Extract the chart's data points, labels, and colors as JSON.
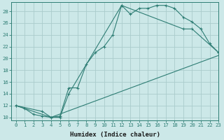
{
  "xlabel": "Humidex (Indice chaleur)",
  "bg_color": "#cce8e8",
  "line_color": "#2e7d74",
  "grid_color": "#aacccc",
  "line1_x": [
    0,
    1,
    2,
    3,
    4,
    5,
    6,
    7,
    8,
    9,
    10,
    11,
    12,
    13,
    14,
    15,
    16,
    17,
    18,
    19,
    20,
    21,
    22,
    23
  ],
  "line1_y": [
    12,
    11.5,
    10.5,
    10.2,
    10,
    10.2,
    15,
    15,
    19,
    21,
    22,
    24,
    29,
    27.5,
    28.5,
    28.5,
    29,
    29,
    28.5,
    27,
    26.2,
    25,
    22.5,
    21
  ],
  "line2_x": [
    0,
    3,
    4,
    5,
    6,
    12,
    19,
    20,
    23
  ],
  "line2_y": [
    12,
    11,
    10,
    10,
    14,
    29,
    25,
    25,
    21
  ],
  "line3_x": [
    0,
    4,
    23
  ],
  "line3_y": [
    12,
    10,
    20.5
  ],
  "xlim": [
    -0.5,
    23
  ],
  "ylim": [
    9.5,
    29.5
  ],
  "yticks": [
    10,
    12,
    14,
    16,
    18,
    20,
    22,
    24,
    26,
    28
  ],
  "xticks": [
    0,
    1,
    2,
    3,
    4,
    5,
    6,
    7,
    8,
    9,
    10,
    11,
    12,
    13,
    14,
    15,
    16,
    17,
    18,
    19,
    20,
    21,
    22,
    23
  ],
  "xlabel_fontsize": 6.5,
  "tick_fontsize": 5.2,
  "label_color": "#1a1a1a"
}
